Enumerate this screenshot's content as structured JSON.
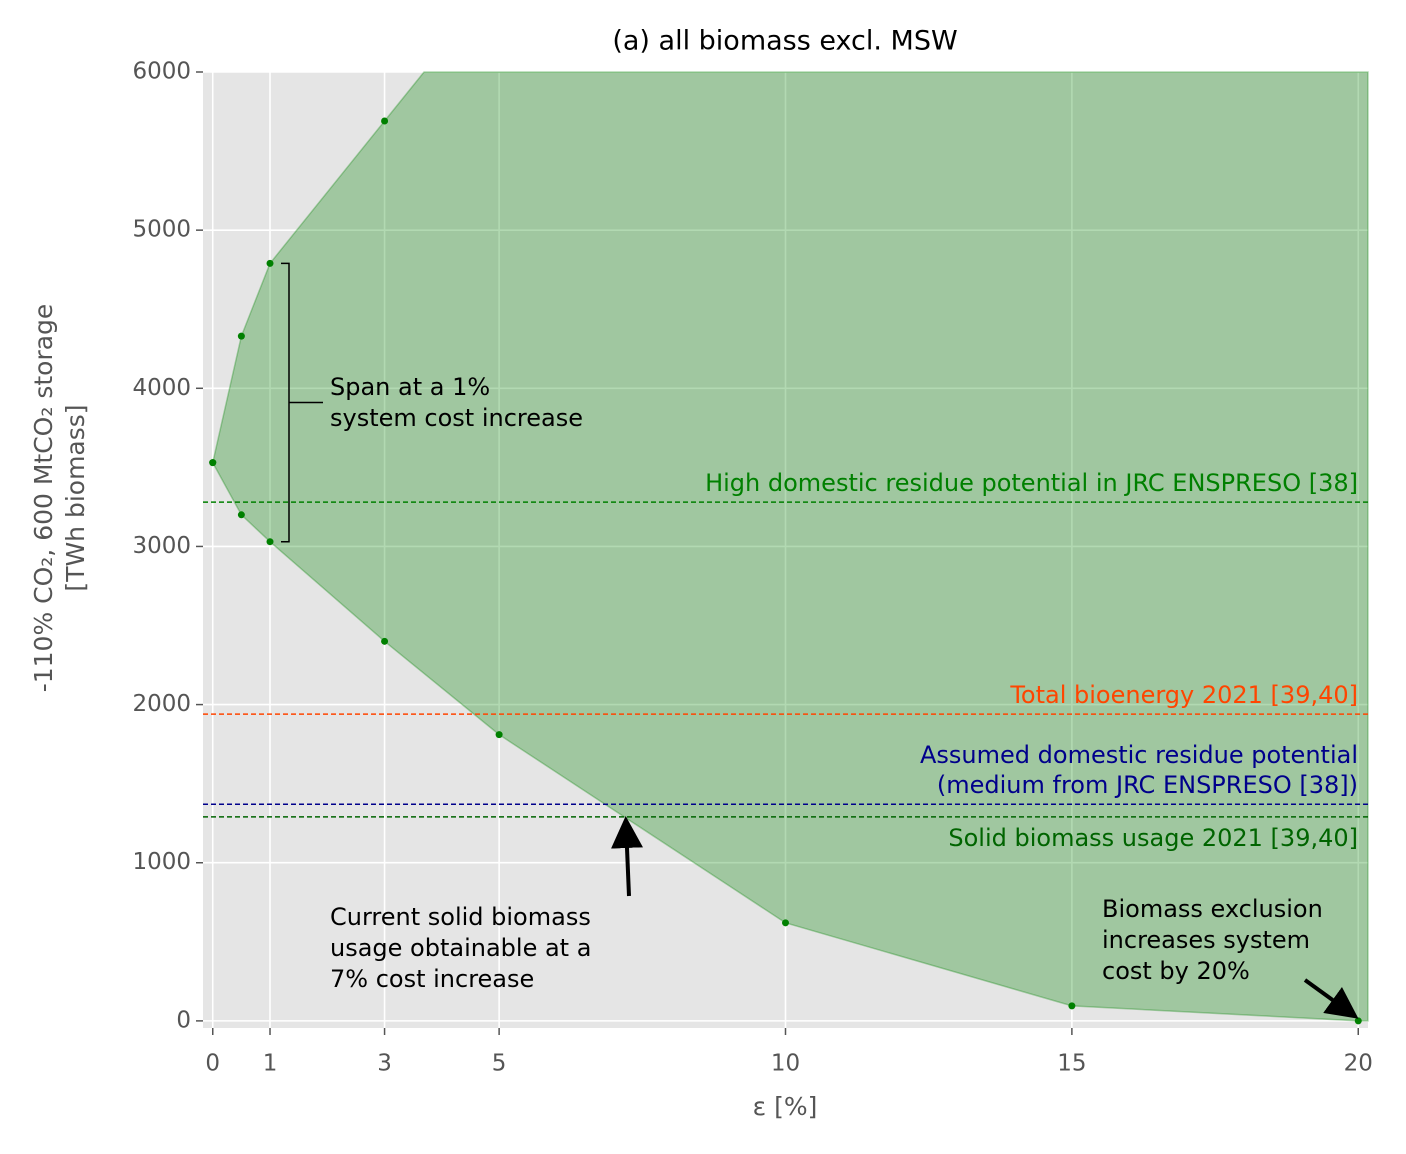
{
  "chart_data": {
    "type": "area",
    "title": "(a) all biomass excl. MSW",
    "xlabel": "ε [%]",
    "ylabel": [
      "-110% CO₂, 600 MtCO₂ storage",
      "[TWh biomass]"
    ],
    "x": [
      0,
      0.5,
      1,
      3,
      5,
      10,
      15,
      20
    ],
    "upper_values": [
      3530,
      4330,
      4790,
      5690,
      null,
      null,
      null,
      null
    ],
    "lower_values": [
      3530,
      3200,
      3030,
      2400,
      1810,
      620,
      95,
      0
    ],
    "color": "green",
    "xlim": [
      -0.17,
      20.17
    ],
    "ylim": [
      -45,
      6000
    ],
    "xticks": [
      0,
      1,
      3,
      5,
      10,
      15,
      20
    ],
    "yticks": [
      0,
      1000,
      2000,
      3000,
      4000,
      5000,
      6000
    ],
    "grid": true,
    "hlines": [
      {
        "value": 3280,
        "color": "green",
        "label": [
          "High domestic residue potential in JRC ENSPRESO [38]"
        ]
      },
      {
        "value": 1940,
        "color": "orangered",
        "label": [
          "Total bioenergy 2021 [39,40]"
        ]
      },
      {
        "value": 1370,
        "color": "darkblue",
        "label": [
          "Assumed domestic residue potential",
          "(medium from JRC ENSPRESO [38])"
        ]
      },
      {
        "value": 1290,
        "color": "darkgreen",
        "label": [
          "Solid biomass usage 2021 [39,40]"
        ]
      }
    ],
    "annotations": [
      [
        "Span at a 1%",
        "system cost increase"
      ],
      [
        "Current solid biomass",
        "usage obtainable at a",
        "7% cost increase"
      ],
      [
        "Biomass exclusion",
        "increases system",
        "cost by 20%"
      ]
    ]
  }
}
